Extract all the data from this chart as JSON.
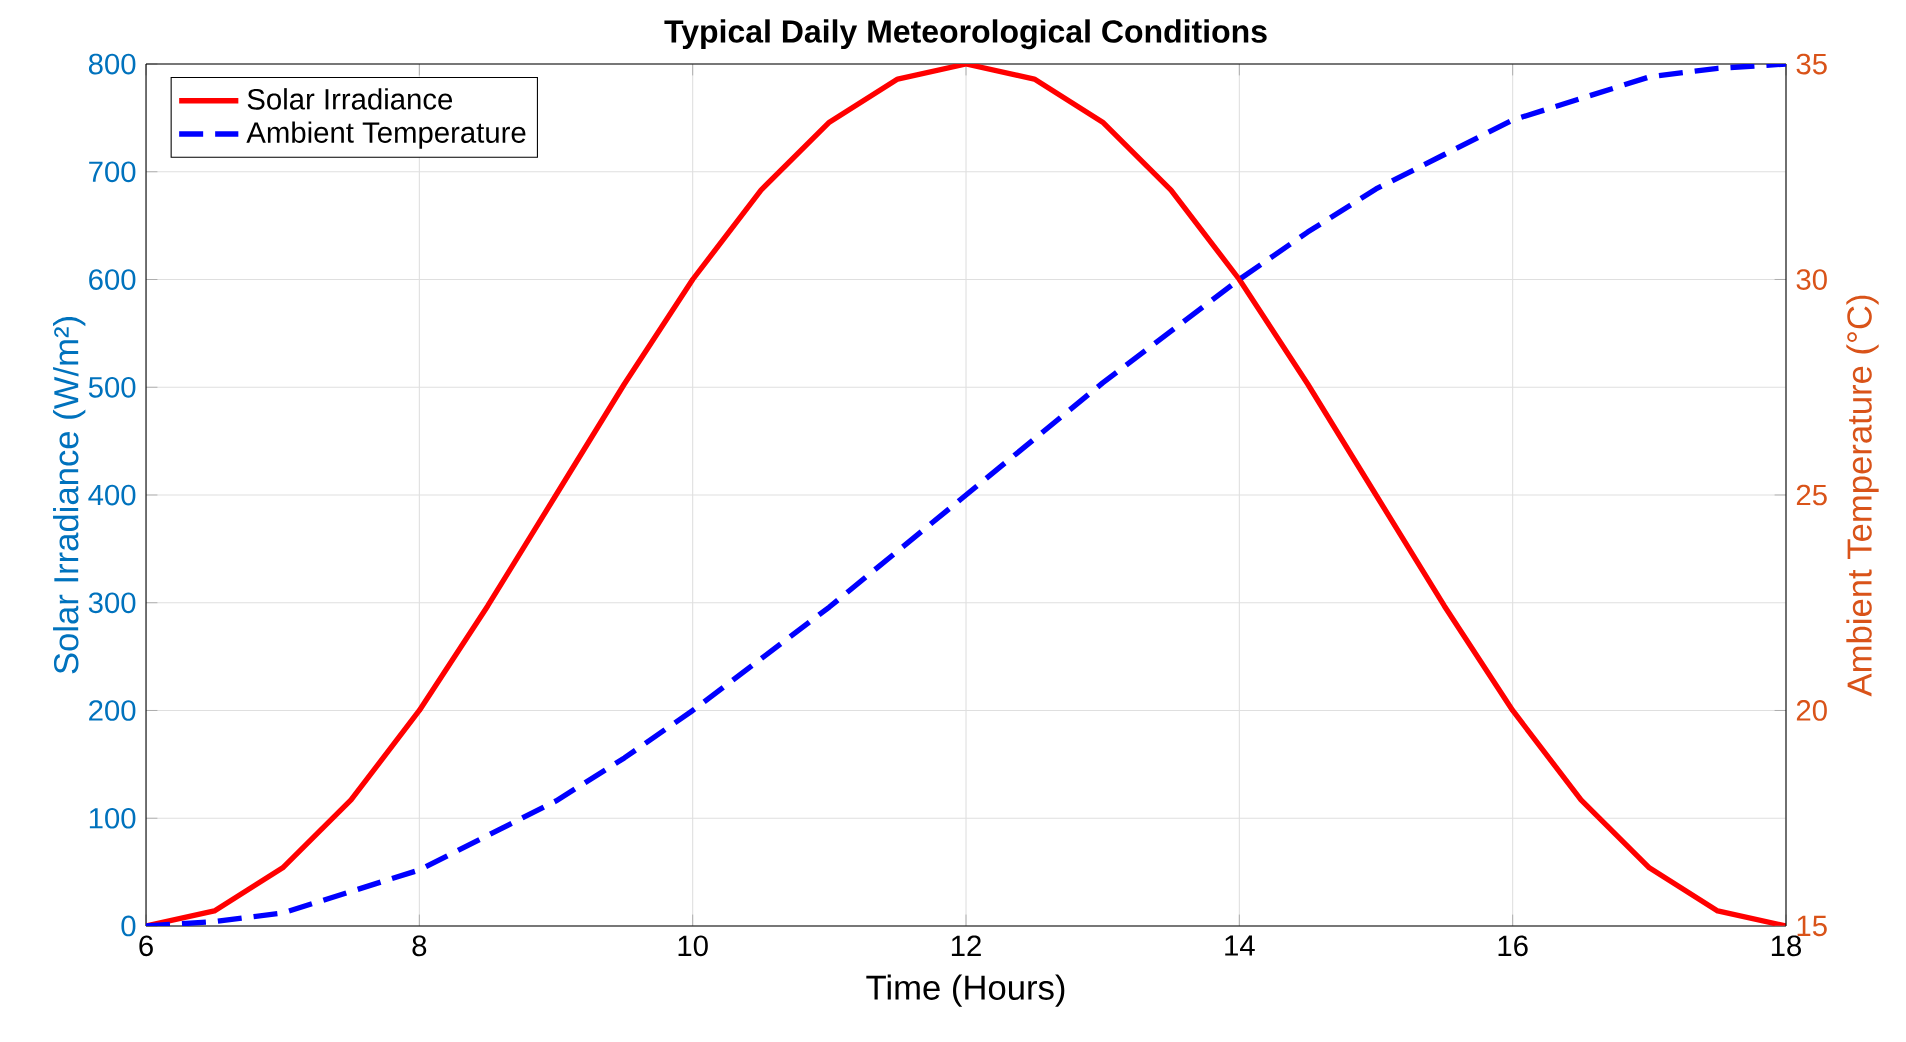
{
  "chart_data": {
    "type": "line",
    "title": "Typical Daily Meteorological Conditions",
    "xlabel": "Time (Hours)",
    "ylabel": "Solar Irradiance (W/m²)",
    "y2label": "Ambient Temperature (°C)",
    "x": [
      6,
      6.5,
      7,
      7.5,
      8,
      8.5,
      9,
      9.5,
      10,
      10.5,
      11,
      11.5,
      12,
      12.5,
      13,
      13.5,
      14,
      14.5,
      15,
      15.5,
      16,
      16.5,
      17,
      17.5,
      18
    ],
    "series": [
      {
        "name": "Solar Irradiance",
        "color": "#ff0000",
        "line_style": "solid",
        "values": [
          0,
          14,
          54,
          117,
          200,
          297,
          400,
          503,
          600,
          683,
          746,
          786,
          800,
          786,
          746,
          683,
          600,
          503,
          400,
          297,
          200,
          117,
          54,
          14,
          0
        ]
      },
      {
        "name": "Ambient Temperature",
        "color": "#0000ff",
        "line_style": "dashed",
        "axis": "y2",
        "values": [
          15,
          15.1,
          15.3,
          15.8,
          16.3,
          17.1,
          17.9,
          18.9,
          20,
          21.2,
          22.4,
          23.7,
          25,
          26.3,
          27.6,
          28.8,
          30,
          31.1,
          32.1,
          32.9,
          33.7,
          34.2,
          34.7,
          34.9,
          35
        ]
      }
    ],
    "xlim": [
      6,
      18
    ],
    "xticks": [
      6,
      8,
      10,
      12,
      14,
      16,
      18
    ],
    "ylim": [
      0,
      800
    ],
    "yticks": [
      0,
      100,
      200,
      300,
      400,
      500,
      600,
      700,
      800
    ],
    "y2lim": [
      15,
      35
    ],
    "y2ticks": [
      15,
      20,
      25,
      30,
      35
    ],
    "grid": true,
    "legend": "top left",
    "marker": "none"
  }
}
